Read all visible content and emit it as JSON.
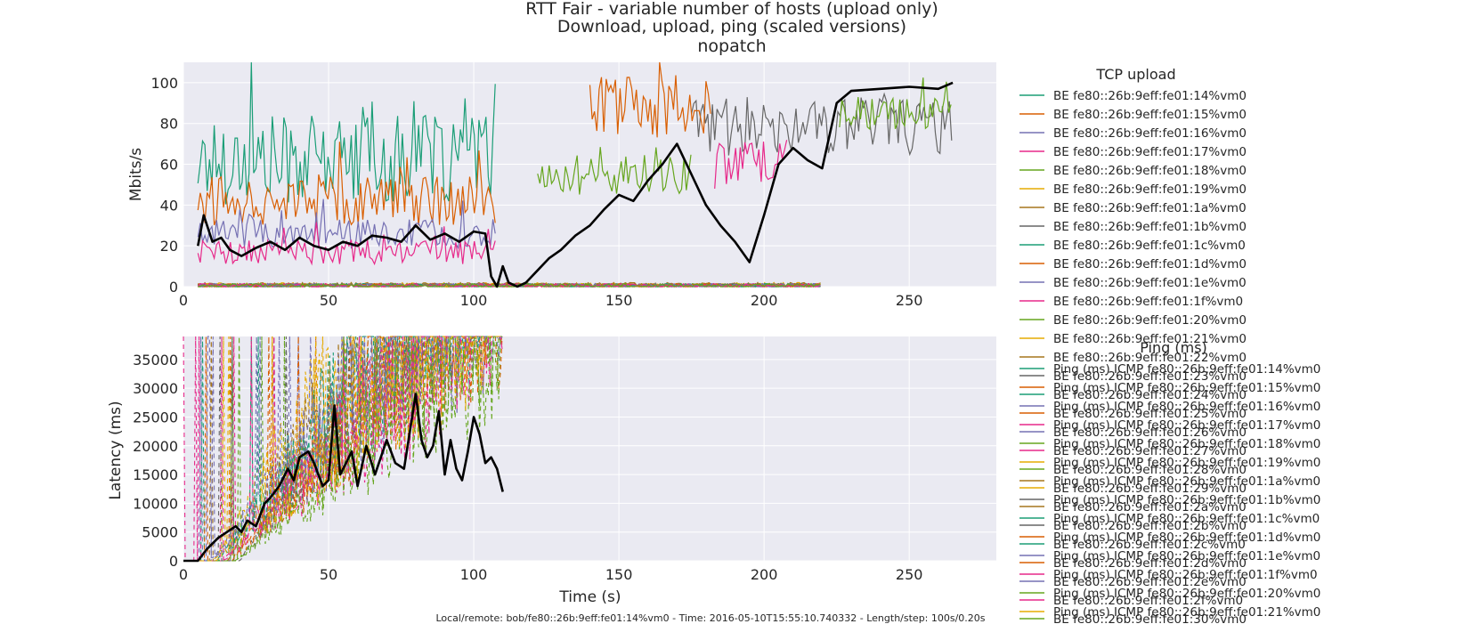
{
  "chart_data": {
    "title": "RTT Fair - variable number of hosts (upload only)",
    "subtitle": "Download, upload, ping (scaled versions)",
    "subtitle2": "nopatch",
    "footer": "Local/remote: bob/fe80::26b:9eff:fe01:14%vm0 - Time: 2016-05-10T15:55:10.740332 - Length/step: 100s/0.20s",
    "x_axis": {
      "label": "Time (s)",
      "range": [
        0,
        280
      ],
      "ticks": [
        "0",
        "50",
        "100",
        "150",
        "200",
        "250"
      ]
    },
    "grid": true,
    "colors": [
      "#1b9e77",
      "#d95f02",
      "#7570b3",
      "#e7298a",
      "#66a61e",
      "#e6ab02",
      "#a6761d",
      "#666666"
    ],
    "panels": [
      {
        "type": "line",
        "ylabel": "Mbits/s",
        "ylim": [
          0,
          110
        ],
        "yticks": [
          "0",
          "20",
          "40",
          "60",
          "80",
          "100"
        ],
        "legend_title": "TCP upload",
        "legend_position": "right",
        "series": [
          {
            "name": "BE fe80::26b:9eff:fe01:14%vm0",
            "start": 5,
            "end": 108,
            "level": 62,
            "amp": 22
          },
          {
            "name": "BE fe80::26b:9eff:fe01:15%vm0",
            "start": 5,
            "end": 108,
            "level": 42,
            "amp": 12
          },
          {
            "name": "BE fe80::26b:9eff:fe01:16%vm0",
            "start": 5,
            "end": 108,
            "level": 26,
            "amp": 7
          },
          {
            "name": "BE fe80::26b:9eff:fe01:17%vm0",
            "start": 5,
            "end": 108,
            "level": 17,
            "amp": 6
          },
          {
            "name": "BE fe80::26b:9eff:fe01:18%vm0",
            "start": 122,
            "end": 175,
            "level": 55,
            "amp": 10
          },
          {
            "name": "BE fe80::26b:9eff:fe01:19%vm0",
            "start": 5,
            "end": 220,
            "level": 1,
            "amp": 1
          },
          {
            "name": "BE fe80::26b:9eff:fe01:1a%vm0",
            "start": 5,
            "end": 220,
            "level": 1,
            "amp": 1
          },
          {
            "name": "BE fe80::26b:9eff:fe01:1b%vm0",
            "start": 175,
            "end": 265,
            "level": 78,
            "amp": 15
          },
          {
            "name": "BE fe80::26b:9eff:fe01:1c%vm0",
            "start": 5,
            "end": 220,
            "level": 0.5,
            "amp": 1
          },
          {
            "name": "BE fe80::26b:9eff:fe01:1d%vm0",
            "start": 140,
            "end": 182,
            "level": 88,
            "amp": 15
          },
          {
            "name": "BE fe80::26b:9eff:fe01:1e%vm0",
            "start": 5,
            "end": 220,
            "level": 0.5,
            "amp": 1
          },
          {
            "name": "BE fe80::26b:9eff:fe01:1f%vm0",
            "start": 183,
            "end": 208,
            "level": 60,
            "amp": 12
          },
          {
            "name": "BE fe80::26b:9eff:fe01:20%vm0",
            "start": 226,
            "end": 265,
            "level": 85,
            "amp": 8
          },
          {
            "name": "BE fe80::26b:9eff:fe01:21%vm0",
            "start": 5,
            "end": 220,
            "level": 0.5,
            "amp": 1
          },
          {
            "name": "BE fe80::26b:9eff:fe01:22%vm0",
            "start": 5,
            "end": 220,
            "level": 0.5,
            "amp": 1
          },
          {
            "name": "BE fe80::26b:9eff:fe01:23%vm0",
            "start": 5,
            "end": 220,
            "level": 0.5,
            "amp": 1
          },
          {
            "name": "BE fe80::26b:9eff:fe01:24%vm0",
            "start": 5,
            "end": 220,
            "level": 0.5,
            "amp": 1
          },
          {
            "name": "BE fe80::26b:9eff:fe01:25%vm0",
            "start": 5,
            "end": 220,
            "level": 0.5,
            "amp": 1
          },
          {
            "name": "BE fe80::26b:9eff:fe01:26%vm0",
            "start": 5,
            "end": 220,
            "level": 0.5,
            "amp": 1
          },
          {
            "name": "BE fe80::26b:9eff:fe01:27%vm0",
            "start": 5,
            "end": 220,
            "level": 0.5,
            "amp": 1
          },
          {
            "name": "BE fe80::26b:9eff:fe01:28%vm0",
            "start": 5,
            "end": 220,
            "level": 0.5,
            "amp": 1
          },
          {
            "name": "BE fe80::26b:9eff:fe01:29%vm0",
            "start": 5,
            "end": 220,
            "level": 0.5,
            "amp": 1
          },
          {
            "name": "BE fe80::26b:9eff:fe01:2a%vm0",
            "start": 5,
            "end": 220,
            "level": 0.5,
            "amp": 1
          },
          {
            "name": "BE fe80::26b:9eff:fe01:2b%vm0",
            "start": 5,
            "end": 220,
            "level": 0.5,
            "amp": 1
          },
          {
            "name": "BE fe80::26b:9eff:fe01:2c%vm0",
            "start": 5,
            "end": 220,
            "level": 0.5,
            "amp": 1
          },
          {
            "name": "BE fe80::26b:9eff:fe01:2d%vm0",
            "start": 5,
            "end": 220,
            "level": 0.5,
            "amp": 1
          },
          {
            "name": "BE fe80::26b:9eff:fe01:2e%vm0",
            "start": 5,
            "end": 220,
            "level": 0.5,
            "amp": 1
          },
          {
            "name": "BE fe80::26b:9eff:fe01:2f%vm0",
            "start": 5,
            "end": 220,
            "level": 0.5,
            "amp": 1
          },
          {
            "name": "BE fe80::26b:9eff:fe01:30%vm0",
            "start": 5,
            "end": 220,
            "level": 0.5,
            "amp": 1
          }
        ],
        "average": {
          "x": [
            5,
            7,
            10,
            13,
            16,
            20,
            25,
            30,
            35,
            40,
            45,
            50,
            55,
            60,
            65,
            70,
            75,
            80,
            85,
            90,
            95,
            100,
            104,
            106,
            108,
            110,
            112,
            115,
            118,
            122,
            126,
            130,
            135,
            140,
            145,
            150,
            155,
            160,
            165,
            170,
            175,
            180,
            185,
            190,
            195,
            200,
            205,
            210,
            215,
            220,
            225,
            230,
            240,
            250,
            260,
            265
          ],
          "y": [
            20,
            35,
            22,
            24,
            18,
            15,
            19,
            22,
            18,
            24,
            20,
            18,
            22,
            20,
            25,
            24,
            22,
            30,
            23,
            26,
            22,
            27,
            26,
            5,
            0,
            10,
            2,
            0,
            2,
            8,
            14,
            18,
            25,
            30,
            38,
            45,
            42,
            52,
            60,
            70,
            55,
            40,
            30,
            22,
            12,
            35,
            60,
            68,
            62,
            58,
            90,
            96,
            97,
            98,
            97,
            100
          ]
        }
      },
      {
        "type": "line",
        "ylabel": "Latency (ms)",
        "ylim": [
          0,
          39000
        ],
        "yticks": [
          "0",
          "5000",
          "10000",
          "15000",
          "20000",
          "25000",
          "30000",
          "35000"
        ],
        "legend_title": "Ping (ms)",
        "legend_position": "right",
        "series": [
          {
            "name": "Ping (ms) ICMP fe80::26b:9eff:fe01:14%vm0",
            "end": 110
          },
          {
            "name": "Ping (ms) ICMP fe80::26b:9eff:fe01:15%vm0",
            "end": 110
          },
          {
            "name": "Ping (ms) ICMP fe80::26b:9eff:fe01:16%vm0",
            "end": 110
          },
          {
            "name": "Ping (ms) ICMP fe80::26b:9eff:fe01:17%vm0",
            "end": 110
          },
          {
            "name": "Ping (ms) ICMP fe80::26b:9eff:fe01:18%vm0",
            "end": 110
          },
          {
            "name": "Ping (ms) ICMP fe80::26b:9eff:fe01:19%vm0",
            "end": 110
          },
          {
            "name": "Ping (ms) ICMP fe80::26b:9eff:fe01:1a%vm0",
            "end": 110
          },
          {
            "name": "Ping (ms) ICMP fe80::26b:9eff:fe01:1b%vm0",
            "end": 110
          },
          {
            "name": "Ping (ms) ICMP fe80::26b:9eff:fe01:1c%vm0",
            "end": 110
          },
          {
            "name": "Ping (ms) ICMP fe80::26b:9eff:fe01:1d%vm0",
            "end": 110
          },
          {
            "name": "Ping (ms) ICMP fe80::26b:9eff:fe01:1e%vm0",
            "end": 110
          },
          {
            "name": "Ping (ms) ICMP fe80::26b:9eff:fe01:1f%vm0",
            "end": 110
          },
          {
            "name": "Ping (ms) ICMP fe80::26b:9eff:fe01:20%vm0",
            "end": 110
          },
          {
            "name": "Ping (ms) ICMP fe80::26b:9eff:fe01:21%vm0",
            "end": 110
          }
        ],
        "average": {
          "x": [
            0,
            5,
            8,
            12,
            15,
            18,
            20,
            22,
            25,
            28,
            30,
            33,
            36,
            38,
            40,
            43,
            45,
            48,
            50,
            52,
            54,
            56,
            58,
            60,
            63,
            66,
            70,
            73,
            76,
            80,
            82,
            84,
            86,
            88,
            90,
            92,
            94,
            96,
            98,
            100,
            102,
            104,
            106,
            108,
            110
          ],
          "y": [
            0,
            0,
            2000,
            4000,
            5000,
            6000,
            5000,
            7000,
            6000,
            10000,
            11000,
            13000,
            16000,
            14000,
            18000,
            19000,
            17000,
            13000,
            14000,
            27000,
            15000,
            17000,
            19000,
            13000,
            20000,
            15000,
            21000,
            17000,
            16000,
            29000,
            21000,
            18000,
            20000,
            26000,
            15000,
            21000,
            16000,
            14000,
            19000,
            25000,
            22000,
            17000,
            18000,
            16000,
            12000
          ]
        }
      }
    ]
  }
}
